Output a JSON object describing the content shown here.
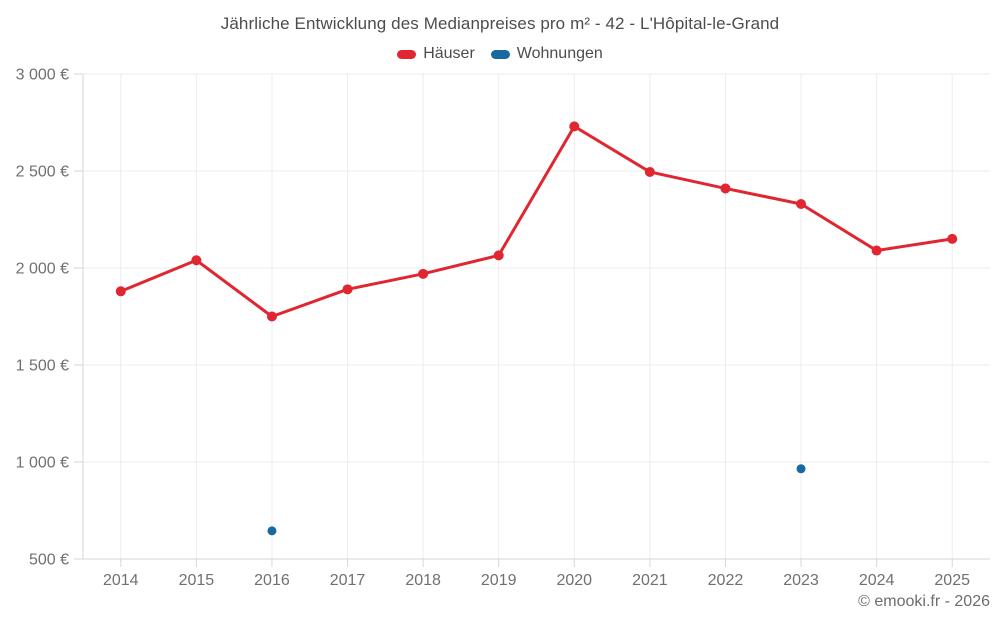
{
  "page": {
    "copyright": "© emooki.fr - 2026"
  },
  "chart_data": {
    "type": "line",
    "title": "Jährliche Entwicklung des Medianpreises pro m² - 42 - L'Hôpital-le-Grand",
    "categories": [
      "2014",
      "2015",
      "2016",
      "2017",
      "2018",
      "2019",
      "2020",
      "2021",
      "2022",
      "2023",
      "2024",
      "2025"
    ],
    "series": [
      {
        "name": "Häuser",
        "color": "#e02630",
        "values": [
          1880,
          2040,
          1750,
          1890,
          1970,
          2065,
          2730,
          2495,
          2410,
          2330,
          2090,
          2150
        ]
      },
      {
        "name": "Wohnungen",
        "color": "#17699f",
        "values": [
          null,
          null,
          645,
          null,
          null,
          null,
          null,
          null,
          null,
          965,
          null,
          null
        ]
      }
    ],
    "ylim": [
      500,
      3000
    ],
    "yticks": [
      500,
      1000,
      1500,
      2000,
      2500,
      3000
    ],
    "ytick_labels": [
      "500 €",
      "1 000 €",
      "1 500 €",
      "2 000 €",
      "2 500 €",
      "3 000 €"
    ],
    "grid": "on",
    "legend_position": "top",
    "axis_unit": "€"
  }
}
